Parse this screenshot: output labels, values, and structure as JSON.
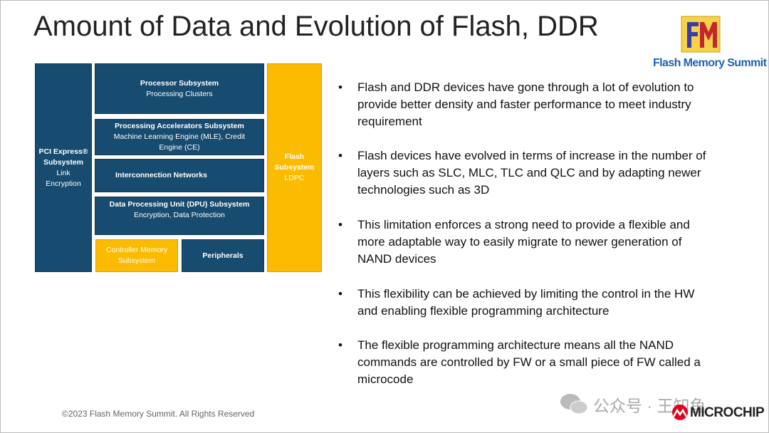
{
  "header": {
    "title": "Amount of Data and Evolution of Flash, DDR",
    "logo_text": "Flash Memory Summit"
  },
  "diagram": {
    "blocks": [
      {
        "title": "PCI Express® Subsystem",
        "subtitle": "Link Encryption"
      },
      {
        "title": "Processor Subsystem",
        "subtitle": "Processing Clusters"
      },
      {
        "title": "Processing Accelerators Subsystem",
        "subtitle": "Machine Learning Engine (MLE), Credit Engine (CE)"
      },
      {
        "title": "Interconnection Networks"
      },
      {
        "title": "Data Processing Unit (DPU) Subsystem",
        "subtitle": "Encryption, Data Protection"
      },
      {
        "title": "Controller Memory Subsystem"
      },
      {
        "title": "Peripherals"
      },
      {
        "title": "Flash Subsystem",
        "subtitle": "LDPC"
      }
    ]
  },
  "bullets": [
    "Flash and DDR devices have gone through a lot of evolution to provide better density and faster performance to meet industry requirement",
    "Flash devices have evolved in terms of increase in the number of layers such as SLC, MLC, TLC and QLC  and by adapting newer technologies such as 3D",
    "This limitation enforces a strong need to provide a flexible and more adaptable way to easily migrate to newer generation of NAND devices",
    "This flexibility can be achieved by limiting the control in the HW and enabling flexible programming architecture",
    "The flexible programming architecture means all the NAND commands are controlled by FW or a small piece of FW called a microcode"
  ],
  "footer": {
    "copyright": "©2023 Flash Memory Summit. All Rights Reserved",
    "watermark": "公众号 · 王知鱼",
    "brand": "MICROCHIP"
  }
}
